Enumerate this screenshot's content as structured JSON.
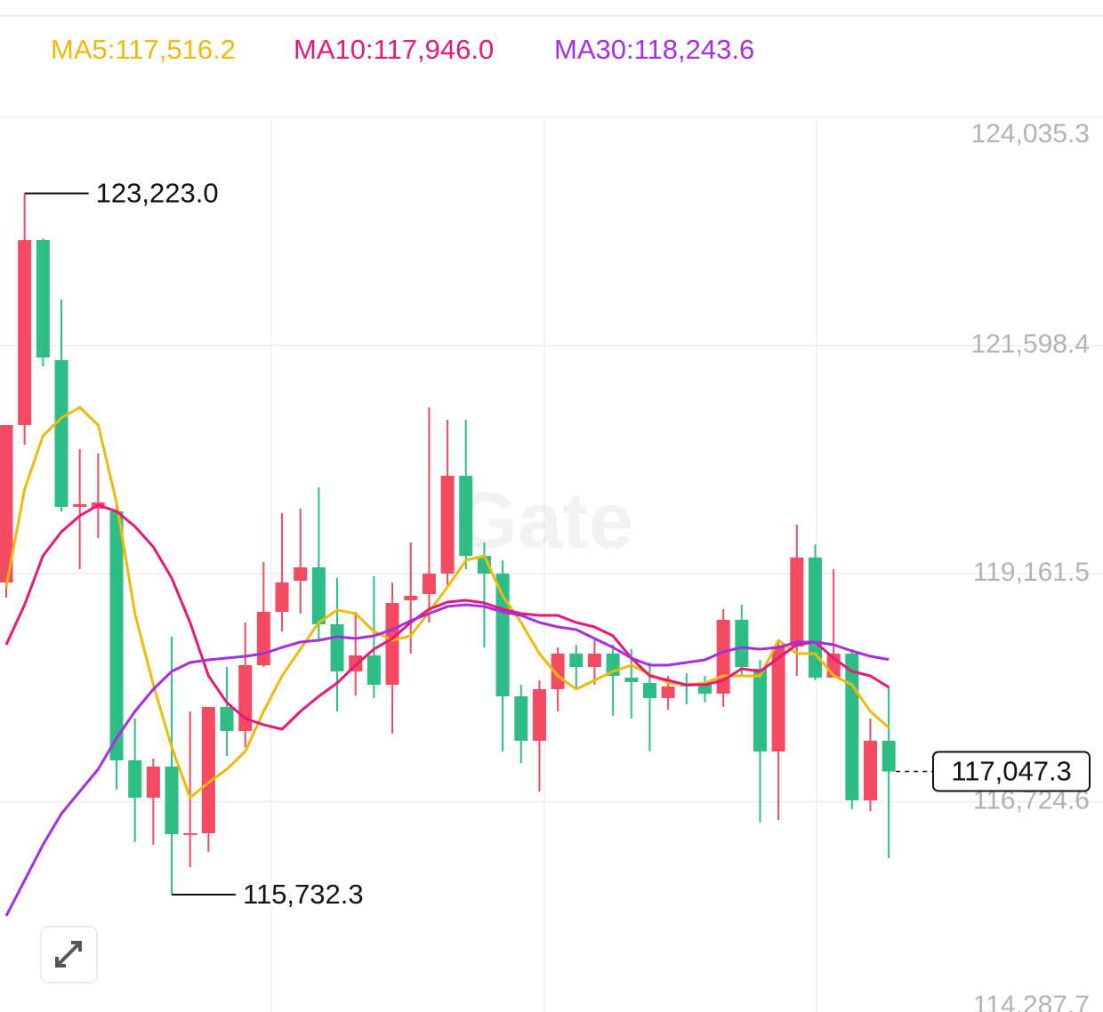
{
  "chart_data": {
    "type": "candlestick",
    "watermark": "Gate",
    "grid": true,
    "up_color": "#f44a62",
    "down_color": "#2ebd85",
    "ylim": [
      114287.7,
      124035.3
    ],
    "yticks": [
      {
        "value": 114287.7,
        "label": "114,287.7"
      },
      {
        "value": 116724.6,
        "label": "116,724.6"
      },
      {
        "value": 119161.5,
        "label": "119,161.5"
      },
      {
        "value": 121598.4,
        "label": "121,598.4"
      },
      {
        "value": 124035.3,
        "label": "124,035.3"
      }
    ],
    "open": [
      119066.5,
      120748,
      122724,
      121441.5,
      119874,
      119855,
      119826.5,
      117166.5,
      116767.5,
      117100,
      116378,
      116387.5,
      117736.5,
      117480,
      118183,
      118753,
      119085.5,
      119228,
      118620,
      118116.5,
      118287.5,
      117974,
      118876.5,
      118943,
      119161.5,
      120206.5,
      119351.5,
      119161.5,
      117850.5,
      117375.5,
      117926.5,
      118306.5,
      118164,
      118306.5,
      118050,
      117993,
      117831.5,
      117974,
      117993,
      117879,
      118667.5,
      118145,
      117261.5,
      118382.5,
      119332.5,
      118050,
      118306.5,
      116739,
      117375.5
    ],
    "high": [
      120748,
      123223.0,
      122743,
      122087.5,
      120491.5,
      120444,
      119893,
      117613,
      117185.5,
      118487,
      117689,
      117736.5,
      118164,
      118639,
      119285,
      119807.5,
      119855,
      120083,
      119114,
      118753,
      119133,
      119066.5,
      119494,
      120938,
      120805,
      120805,
      119494,
      119304,
      117974,
      118021.5,
      118373,
      118401.5,
      118449,
      118401.5,
      118354,
      118211.5,
      118069,
      118097.5,
      118069,
      118781.5,
      118829,
      118240,
      118430,
      119684,
      119475,
      119209,
      118354,
      117613,
      117955
    ],
    "low": [
      118905,
      120539,
      121375,
      119826.5,
      119209,
      119541.5,
      116853,
      116292.5,
      116264,
      115732.3,
      116026.5,
      116188,
      117214,
      117309,
      118164,
      118544,
      118734,
      118449,
      117689,
      117860,
      117831.5,
      117451.5,
      118306.5,
      118639,
      119019,
      119209,
      118373,
      117261.5,
      117138,
      116834,
      117689,
      117926.5,
      117974,
      117641.5,
      117613,
      117261.5,
      117708,
      117765,
      117784,
      117736.5,
      118069,
      116501.5,
      116530,
      118069,
      118021.5,
      118050,
      116644,
      116625,
      116121.5
    ],
    "close": [
      120748,
      122724,
      121470,
      119874,
      119902.5,
      119921.5,
      117166.5,
      116767.5,
      117100,
      116378,
      116387.5,
      117736.5,
      117480,
      118183,
      118753,
      119066.5,
      119228,
      118620,
      118116.5,
      118287.5,
      117974,
      118848,
      118924,
      119161.5,
      120206.5,
      119351.5,
      119161.5,
      117850.5,
      117375.5,
      117926.5,
      118306.5,
      118164,
      118306.5,
      118069,
      118002.5,
      117831.5,
      117955,
      117955,
      117879,
      118667.5,
      118164,
      117261.5,
      118382.5,
      119332.5,
      118050,
      118306.5,
      116739,
      117375.5,
      117047.3
    ],
    "series": [
      {
        "name": "MA5:117,516.2",
        "color": "#f0b90b",
        "values": [
          119019,
          120064,
          120634,
          120824,
          120938,
          120748,
          119921.5,
          118734,
          117974,
          117309,
          116767.5,
          116929,
          117071.5,
          117261.5,
          117689,
          118069,
          118354,
          118639,
          118772,
          118734,
          118544,
          118449,
          118496.5,
          118753,
          119019,
          119304,
          119351.5,
          118924,
          118639,
          118306.5,
          118069,
          117926.5,
          118021.5,
          118116.5,
          118183,
          118088,
          117993,
          117974,
          117993,
          118069,
          118069,
          118069,
          118449,
          118306.5,
          118306.5,
          118069,
          117974,
          117689,
          117516.2
        ]
      },
      {
        "name": "MA10:117,946.0",
        "color": "#e5197c",
        "values": [
          118401.5,
          118829,
          119351.5,
          119608,
          119779,
          119893,
          119826.5,
          119665,
          119446.5,
          119114,
          118639,
          118069,
          117784,
          117613,
          117546.5,
          117499,
          117689,
          117850.5,
          117993,
          118183,
          118354,
          118468,
          118639,
          118781.5,
          118857.5,
          118876.5,
          118848,
          118781.5,
          118734,
          118715,
          118715,
          118639,
          118591.5,
          118496.5,
          118259,
          118069,
          118021.5,
          117974,
          117974,
          118021.5,
          118145,
          118116.5,
          118259,
          118401.5,
          118430,
          118259,
          118116.5,
          118069,
          117946.0
        ]
      },
      {
        "name": "MA30:118,243.6",
        "color": "#a72ee0",
        "values": [
          115504,
          115884,
          116264,
          116596.5,
          116834,
          117071.5,
          117404,
          117689,
          117926.5,
          118116.5,
          118211.5,
          118240,
          118259,
          118278,
          118306.5,
          118373,
          118430,
          118449,
          118487,
          118468,
          118496.5,
          118563,
          118658,
          118734,
          118810,
          118829,
          118810,
          118753,
          118715,
          118639,
          118591.5,
          118563,
          118468,
          118373,
          118259,
          118183,
          118183,
          118211.5,
          118240,
          118325.5,
          118373,
          118354,
          118373,
          118430,
          118430,
          118401.5,
          118335,
          118278,
          118243.6
        ]
      }
    ],
    "annotations": [
      {
        "value": 123223.0,
        "label": "123,223.0"
      },
      {
        "value": 115732.3,
        "label": "115,732.3"
      }
    ],
    "last_price": {
      "value": 117047.3,
      "label": "117,047.3"
    }
  }
}
